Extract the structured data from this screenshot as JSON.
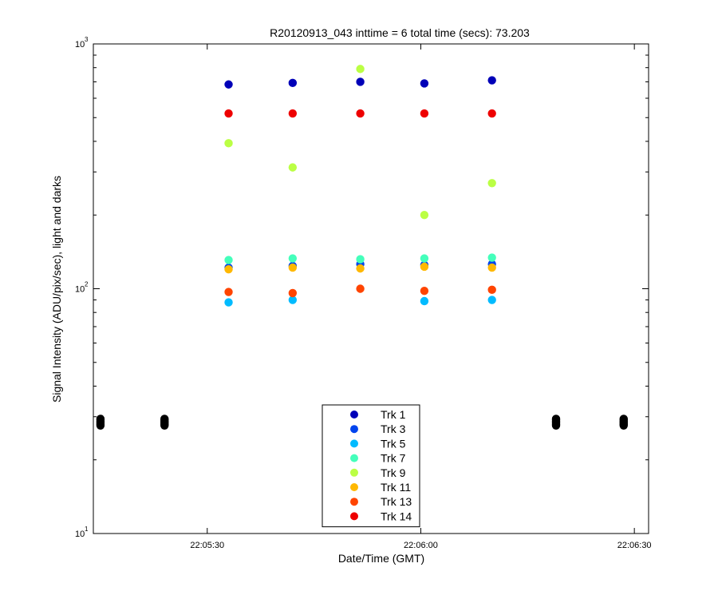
{
  "chart_data": {
    "type": "scatter",
    "title": "R20120913_043 inttime = 6 total time (secs): 73.203",
    "xlabel": "Date/Time (GMT)",
    "ylabel": "Signal Intensity (ADU/pix/sec), light and darks",
    "xlim_seconds_of_day": [
      79514,
      79592
    ],
    "yscale": "log",
    "ylim": [
      10,
      1000
    ],
    "xticks": [
      {
        "value": 79530,
        "label": "22:05:30"
      },
      {
        "value": 79560,
        "label": "22:06:00"
      },
      {
        "value": 79590,
        "label": "22:06:30"
      }
    ],
    "yticks": [
      {
        "value": 10,
        "base": "10",
        "exp": "1"
      },
      {
        "value": 100,
        "base": "10",
        "exp": "2"
      },
      {
        "value": 1000,
        "base": "10",
        "exp": "3"
      }
    ],
    "x": [
      79533,
      79542,
      79551.5,
      79560.5,
      79570
    ],
    "series": [
      {
        "name": "Trk 1",
        "color": "#0000b8",
        "values": [
          683,
          693,
          700,
          690,
          710
        ]
      },
      {
        "name": "Trk 3",
        "color": "#0044ee",
        "values": [
          122,
          124,
          126,
          125,
          126
        ]
      },
      {
        "name": "Trk 5",
        "color": "#00bbff",
        "values": [
          88,
          90,
          null,
          89,
          90
        ]
      },
      {
        "name": "Trk 7",
        "color": "#44ffbb",
        "values": [
          131,
          133,
          132,
          133,
          134
        ]
      },
      {
        "name": "Trk 9",
        "color": "#bbff44",
        "values": [
          393,
          313,
          790,
          200,
          270
        ]
      },
      {
        "name": "Trk 11",
        "color": "#ffb800",
        "values": [
          120,
          122,
          121,
          123,
          122
        ]
      },
      {
        "name": "Trk 13",
        "color": "#ff4400",
        "values": [
          97,
          96,
          100,
          98,
          99
        ]
      },
      {
        "name": "Trk 14",
        "color": "#ee0000",
        "values": [
          520,
          520,
          520,
          520,
          520
        ]
      }
    ],
    "darks": {
      "color": "#000000",
      "x": [
        79515,
        79524,
        79579,
        79588.5
      ],
      "values": [
        28.5,
        28.5,
        28.5,
        28.5
      ]
    },
    "legend": {
      "placement": "bottom-center"
    },
    "grid": false
  }
}
